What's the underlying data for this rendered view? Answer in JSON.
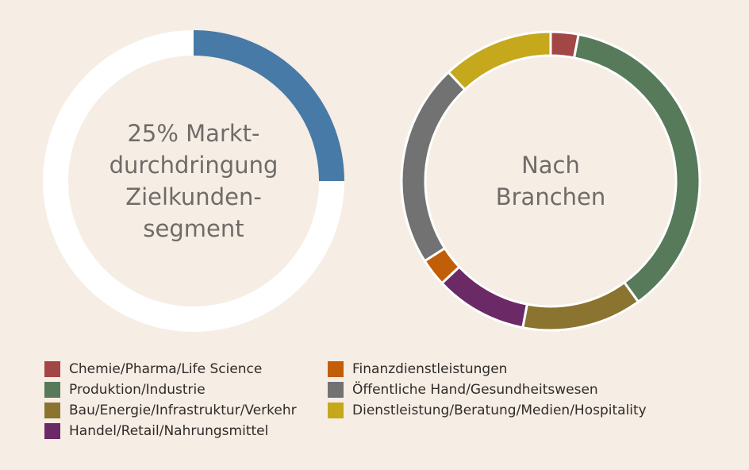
{
  "chart_data": [
    {
      "type": "pie",
      "variant": "donut",
      "center_text": [
        "25% Markt-",
        "durchdringung",
        "Zielkunden-",
        "segment"
      ],
      "slices": [
        {
          "value": 25,
          "color": "#477aa6"
        },
        {
          "value": 75,
          "color": "#ffffff"
        }
      ]
    },
    {
      "type": "pie",
      "variant": "donut",
      "center_text": [
        "Nach",
        "Branchen"
      ],
      "slices": [
        {
          "label": "Chemie/Pharma/Life Science",
          "value": 3,
          "color": "#a34646"
        },
        {
          "label": "Produktion/Industrie",
          "value": 37,
          "color": "#567a5a"
        },
        {
          "label": "Bau/Energie/Infrastruktur/Verkehr",
          "value": 13,
          "color": "#8b7430"
        },
        {
          "label": "Handel/Retail/Nahrungsmittel",
          "value": 10,
          "color": "#6b2a66"
        },
        {
          "label": "Finanzdienstleistungen",
          "value": 3,
          "color": "#c25e08"
        },
        {
          "label": "Öffentliche Hand/Gesundheitswesen",
          "value": 22,
          "color": "#727272"
        },
        {
          "label": "Dienstleistung/Beratung/Medien/Hospitality",
          "value": 12,
          "color": "#c5a81c"
        }
      ],
      "legend": {
        "columns": [
          [
            "Chemie/Pharma/Life Science",
            "Produktion/Industrie",
            "Bau/Energie/Infrastruktur/Verkehr",
            "Handel/Retail/Nahrungsmittel"
          ],
          [
            "Finanzdienstleistungen",
            "Öffentliche Hand/Gesundheitswesen",
            "Dienstleistung/Beratung/Medien/Hospitality"
          ]
        ]
      }
    }
  ]
}
